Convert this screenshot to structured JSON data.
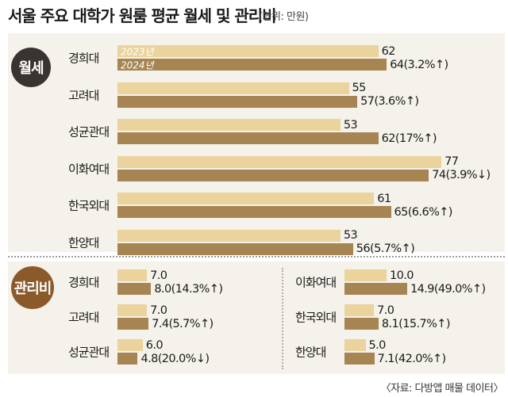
{
  "title": "서울 주요 대학가 원룸 평균 월세 및 관리비",
  "unit": "(단위: 만원)",
  "source": "〈자료: 다방앱 매물 데이터〉",
  "legend": {
    "y2023": "2023년",
    "y2024": "2024년"
  },
  "colors": {
    "bar_2023": "#ead39c",
    "bar_2024": "#a68552",
    "badge_rent": "#3a3431",
    "badge_mgmt": "#8b5a2b",
    "panel": "#f5f2eb"
  },
  "chart_data": [
    {
      "type": "bar",
      "orientation": "horizontal",
      "section_label": "월세",
      "categories": [
        "경희대",
        "고려대",
        "성균관대",
        "이화여대",
        "한국외대",
        "한양대"
      ],
      "series": [
        {
          "name": "2023년",
          "values": [
            62,
            55,
            53,
            77,
            61,
            53
          ],
          "labels": [
            "62",
            "55",
            "53",
            "77",
            "61",
            "53"
          ]
        },
        {
          "name": "2024년",
          "values": [
            64,
            57,
            62,
            74,
            65,
            56
          ],
          "labels": [
            "64(3.2%↑)",
            "57(3.6%↑)",
            "62(17%↑)",
            "74(3.9%↓)",
            "65(6.6%↑)",
            "56(5.7%↑)"
          ]
        }
      ]
    },
    {
      "type": "bar",
      "orientation": "horizontal",
      "section_label": "관리비",
      "categories": [
        "경희대",
        "고려대",
        "성균관대",
        "이화여대",
        "한국외대",
        "한양대"
      ],
      "series": [
        {
          "name": "2023년",
          "values": [
            7.0,
            7.0,
            6.0,
            10.0,
            7.0,
            5.0
          ],
          "labels": [
            "7.0",
            "7.0",
            "6.0",
            "10.0",
            "7.0",
            "5.0"
          ]
        },
        {
          "name": "2024년",
          "values": [
            8.0,
            7.4,
            4.8,
            14.9,
            8.1,
            7.1
          ],
          "labels": [
            "8.0(14.3%↑)",
            "7.4(5.7%↑)",
            "4.8(20.0%↓)",
            "14.9(49.0%↑)",
            "8.1(15.7%↑)",
            "7.1(42.0%↑)"
          ]
        }
      ]
    }
  ]
}
